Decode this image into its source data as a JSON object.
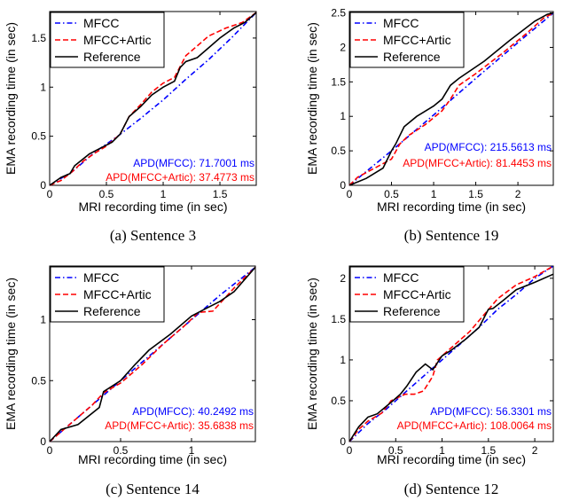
{
  "chart_data": [
    {
      "type": "line",
      "caption": "(a) Sentence 3",
      "xlabel": "MRI recording time (in sec)",
      "ylabel": "EMA recording time (in sec)",
      "xlim": [
        0,
        1.82
      ],
      "ylim": [
        0,
        1.77
      ],
      "xticks": [
        0,
        0.5,
        1,
        1.5
      ],
      "xticklabels": [
        "0",
        "0.5",
        "1",
        "1.5"
      ],
      "yticks": [
        0,
        0.5,
        1,
        1.5
      ],
      "yticklabels": [
        "0",
        "0.5",
        "1",
        "1.5"
      ],
      "legend": "top-left",
      "annotations": [
        {
          "text": "APD(MFCC): 71.7001 ms",
          "color": "#0000ff"
        },
        {
          "text": "APD(MFCC+Artic): 37.4773 ms",
          "color": "#ff0000"
        }
      ],
      "series": [
        {
          "name": "MFCC",
          "color": "#0000ff",
          "style": "dashdot",
          "x": [
            0,
            0.1,
            0.2,
            0.4,
            0.6,
            0.8,
            1.0,
            1.2,
            1.4,
            1.6,
            1.82
          ],
          "y": [
            0,
            0.07,
            0.14,
            0.34,
            0.5,
            0.68,
            0.87,
            1.08,
            1.28,
            1.5,
            1.76
          ]
        },
        {
          "name": "MFCC+Artic",
          "color": "#ff0000",
          "style": "dashed",
          "x": [
            0,
            0.1,
            0.2,
            0.3,
            0.4,
            0.5,
            0.62,
            0.7,
            0.8,
            0.9,
            1.0,
            1.1,
            1.2,
            1.3,
            1.4,
            1.55,
            1.7,
            1.82
          ],
          "y": [
            0,
            0.05,
            0.14,
            0.25,
            0.33,
            0.4,
            0.52,
            0.7,
            0.82,
            0.95,
            1.04,
            1.1,
            1.32,
            1.42,
            1.52,
            1.6,
            1.66,
            1.76
          ]
        },
        {
          "name": "Reference",
          "color": "#000000",
          "style": "solid",
          "x": [
            0,
            0.1,
            0.18,
            0.22,
            0.35,
            0.45,
            0.55,
            0.62,
            0.7,
            0.8,
            0.9,
            1.0,
            1.1,
            1.15,
            1.2,
            1.3,
            1.4,
            1.5,
            1.62,
            1.72,
            1.82
          ],
          "y": [
            0,
            0.08,
            0.12,
            0.2,
            0.32,
            0.38,
            0.44,
            0.52,
            0.7,
            0.8,
            0.92,
            1.0,
            1.06,
            1.2,
            1.26,
            1.3,
            1.4,
            1.5,
            1.6,
            1.66,
            1.76
          ]
        }
      ]
    },
    {
      "type": "line",
      "caption": "(b) Sentence 19",
      "xlabel": "MRI recording time (in sec)",
      "ylabel": "EMA recording time (in sec)",
      "xlim": [
        0,
        2.42
      ],
      "ylim": [
        0,
        2.52
      ],
      "xticks": [
        0,
        0.5,
        1,
        1.5,
        2
      ],
      "xticklabels": [
        "0",
        "0.5",
        "1",
        "1.5",
        "2"
      ],
      "yticks": [
        0,
        0.5,
        1,
        1.5,
        2,
        2.5
      ],
      "yticklabels": [
        "0",
        "0.5",
        "1",
        "1.5",
        "2",
        "2.5"
      ],
      "legend": "top-left",
      "annotations": [
        {
          "text": "APD(MFCC): 215.5613 ms",
          "color": "#0000ff"
        },
        {
          "text": "APD(MFCC+Artic): 81.4453 ms",
          "color": "#ff0000"
        }
      ],
      "series": [
        {
          "name": "MFCC",
          "color": "#0000ff",
          "style": "dashdot",
          "x": [
            0,
            0.5,
            1.0,
            1.5,
            2.0,
            2.42
          ],
          "y": [
            0,
            0.5,
            1.02,
            1.55,
            2.07,
            2.5
          ]
        },
        {
          "name": "MFCC+Artic",
          "color": "#ff0000",
          "style": "dashed",
          "x": [
            0,
            0.1,
            0.3,
            0.5,
            0.6,
            0.7,
            0.9,
            1.1,
            1.2,
            1.3,
            1.5,
            1.8,
            2.1,
            2.3,
            2.42
          ],
          "y": [
            0,
            0.12,
            0.25,
            0.38,
            0.6,
            0.72,
            0.88,
            1.08,
            1.25,
            1.45,
            1.62,
            1.9,
            2.2,
            2.42,
            2.5
          ]
        },
        {
          "name": "Reference",
          "color": "#000000",
          "style": "solid",
          "x": [
            0,
            0.2,
            0.4,
            0.5,
            0.55,
            0.65,
            0.8,
            1.0,
            1.1,
            1.2,
            1.3,
            1.6,
            1.9,
            2.2,
            2.35,
            2.42
          ],
          "y": [
            0,
            0.1,
            0.25,
            0.5,
            0.6,
            0.85,
            1.0,
            1.15,
            1.25,
            1.45,
            1.55,
            1.8,
            2.1,
            2.38,
            2.48,
            2.5
          ]
        }
      ]
    },
    {
      "type": "line",
      "caption": "(c) Sentence 14",
      "xlabel": "MRI recording time (in sec)",
      "ylabel": "EMA recording time (in sec)",
      "xlim": [
        0,
        1.45
      ],
      "ylim": [
        0,
        1.44
      ],
      "xticks": [
        0,
        0.5,
        1
      ],
      "xticklabels": [
        "0",
        "0.5",
        "1"
      ],
      "yticks": [
        0,
        0.5,
        1
      ],
      "yticklabels": [
        "0",
        "0.5",
        "1"
      ],
      "legend": "top-left",
      "annotations": [
        {
          "text": "APD(MFCC): 40.2492 ms",
          "color": "#0000ff"
        },
        {
          "text": "APD(MFCC+Artic): 35.6838 ms",
          "color": "#ff0000"
        }
      ],
      "series": [
        {
          "name": "MFCC",
          "color": "#0000ff",
          "style": "dashdot",
          "x": [
            0,
            0.3,
            0.6,
            0.9,
            1.2,
            1.45
          ],
          "y": [
            0,
            0.3,
            0.6,
            0.9,
            1.2,
            1.43
          ]
        },
        {
          "name": "MFCC+Artic",
          "color": "#ff0000",
          "style": "dashed",
          "x": [
            0,
            0.1,
            0.3,
            0.38,
            0.5,
            0.65,
            0.8,
            0.95,
            1.05,
            1.15,
            1.3,
            1.45
          ],
          "y": [
            0,
            0.1,
            0.3,
            0.4,
            0.48,
            0.63,
            0.8,
            0.95,
            1.06,
            1.07,
            1.26,
            1.43
          ]
        },
        {
          "name": "Reference",
          "color": "#000000",
          "style": "solid",
          "x": [
            0,
            0.08,
            0.2,
            0.35,
            0.38,
            0.5,
            0.6,
            0.7,
            0.85,
            1.0,
            1.1,
            1.2,
            1.3,
            1.45
          ],
          "y": [
            0,
            0.1,
            0.14,
            0.28,
            0.41,
            0.5,
            0.63,
            0.75,
            0.88,
            1.03,
            1.09,
            1.15,
            1.23,
            1.43
          ]
        }
      ]
    },
    {
      "type": "line",
      "caption": "(d) Sentence 12",
      "xlabel": "MRI recording time (in sec)",
      "ylabel": "EMA recording time (in sec)",
      "xlim": [
        0,
        2.2
      ],
      "ylim": [
        0,
        2.15
      ],
      "xticks": [
        0,
        0.5,
        1,
        1.5,
        2
      ],
      "xticklabels": [
        "0",
        "0.5",
        "1",
        "1.5",
        "2"
      ],
      "yticks": [
        0,
        0.5,
        1,
        1.5,
        2
      ],
      "yticklabels": [
        "0",
        "0.5",
        "1",
        "1.5",
        "2"
      ],
      "legend": "top-left",
      "annotations": [
        {
          "text": "APD(MFCC): 56.3301 ms",
          "color": "#0000ff"
        },
        {
          "text": "APD(MFCC+Artic): 108.0064 ms",
          "color": "#ff0000"
        }
      ],
      "series": [
        {
          "name": "MFCC",
          "color": "#0000ff",
          "style": "dashdot",
          "x": [
            0,
            0.2,
            0.4,
            0.6,
            0.8,
            1.0,
            1.2,
            1.4,
            1.6,
            1.8,
            2.0,
            2.2
          ],
          "y": [
            0,
            0.22,
            0.4,
            0.6,
            0.8,
            1.0,
            1.2,
            1.4,
            1.62,
            1.8,
            2.0,
            2.15
          ]
        },
        {
          "name": "MFCC+Artic",
          "color": "#ff0000",
          "style": "dashed",
          "x": [
            0,
            0.1,
            0.2,
            0.35,
            0.45,
            0.6,
            0.7,
            0.8,
            0.9,
            0.95,
            1.1,
            1.3,
            1.45,
            1.6,
            1.8,
            2.0,
            2.2
          ],
          "y": [
            0,
            0.15,
            0.25,
            0.35,
            0.5,
            0.58,
            0.58,
            0.62,
            0.8,
            1.0,
            1.15,
            1.35,
            1.55,
            1.75,
            1.92,
            2.02,
            2.15
          ]
        },
        {
          "name": "Reference",
          "color": "#000000",
          "style": "solid",
          "x": [
            0,
            0.1,
            0.2,
            0.3,
            0.45,
            0.55,
            0.62,
            0.72,
            0.82,
            0.9,
            1.0,
            1.1,
            1.25,
            1.4,
            1.5,
            1.55,
            1.65,
            1.8,
            2.0,
            2.2
          ],
          "y": [
            0,
            0.18,
            0.3,
            0.34,
            0.48,
            0.58,
            0.68,
            0.85,
            0.95,
            0.88,
            1.05,
            1.12,
            1.25,
            1.4,
            1.62,
            1.63,
            1.72,
            1.86,
            1.95,
            2.05
          ]
        }
      ]
    }
  ]
}
